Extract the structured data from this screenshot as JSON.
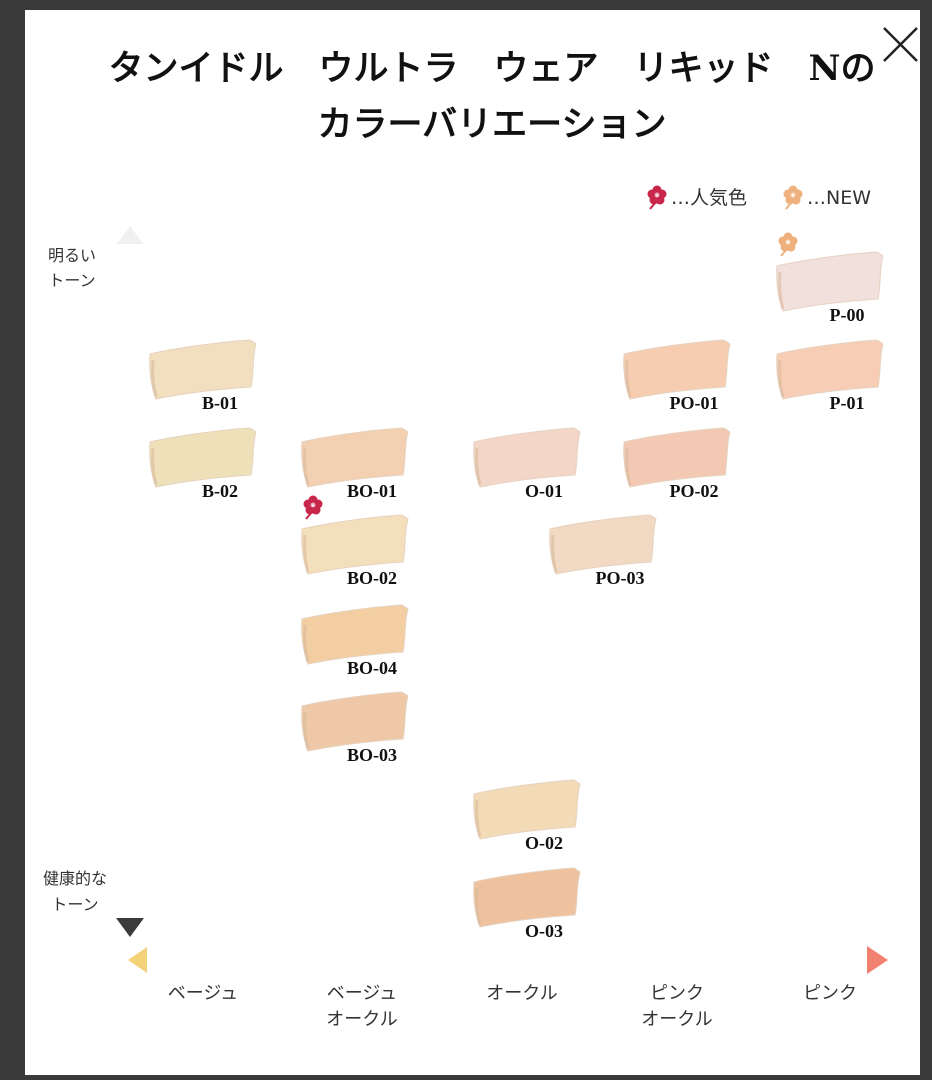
{
  "title": {
    "lines": [
      "タンイドル　ウルトラ　ウェア　リキッド　Nの",
      "カラーバリエーション"
    ]
  },
  "legend": [
    {
      "label": "…人気色",
      "color": "#c8264a"
    },
    {
      "label": "…NEW",
      "color": "#eeb07c"
    }
  ],
  "axis": {
    "top": [
      "明るい",
      "トーン"
    ],
    "bottom": [
      "健康的な",
      "トーン"
    ]
  },
  "columns": [
    [
      "ベージュ"
    ],
    [
      "ベージュ",
      "オークル"
    ],
    [
      "オークル"
    ],
    [
      "ピンク",
      "オークル"
    ],
    [
      "ピンク"
    ]
  ],
  "shades": [
    {
      "label": "B-01",
      "color": "#f1dfc0"
    },
    {
      "label": "B-02",
      "color": "#eee0b9"
    },
    {
      "label": "BO-01",
      "color": "#f3d0b1"
    },
    {
      "label": "BO-02",
      "color": "#f4dfbc"
    },
    {
      "label": "BO-04",
      "color": "#f2cea2"
    },
    {
      "label": "BO-03",
      "color": "#eec8a7"
    },
    {
      "label": "O-01",
      "color": "#f3d6c7"
    },
    {
      "label": "O-02",
      "color": "#f2dbb6"
    },
    {
      "label": "O-03",
      "color": "#eec29e"
    },
    {
      "label": "PO-01",
      "color": "#f6cdb1"
    },
    {
      "label": "PO-02",
      "color": "#f3c9b3"
    },
    {
      "label": "PO-03",
      "color": "#f1d9c4"
    },
    {
      "label": "P-00",
      "color": "#f2e0dd"
    },
    {
      "label": "P-01",
      "color": "#f7ceb5"
    }
  ]
}
